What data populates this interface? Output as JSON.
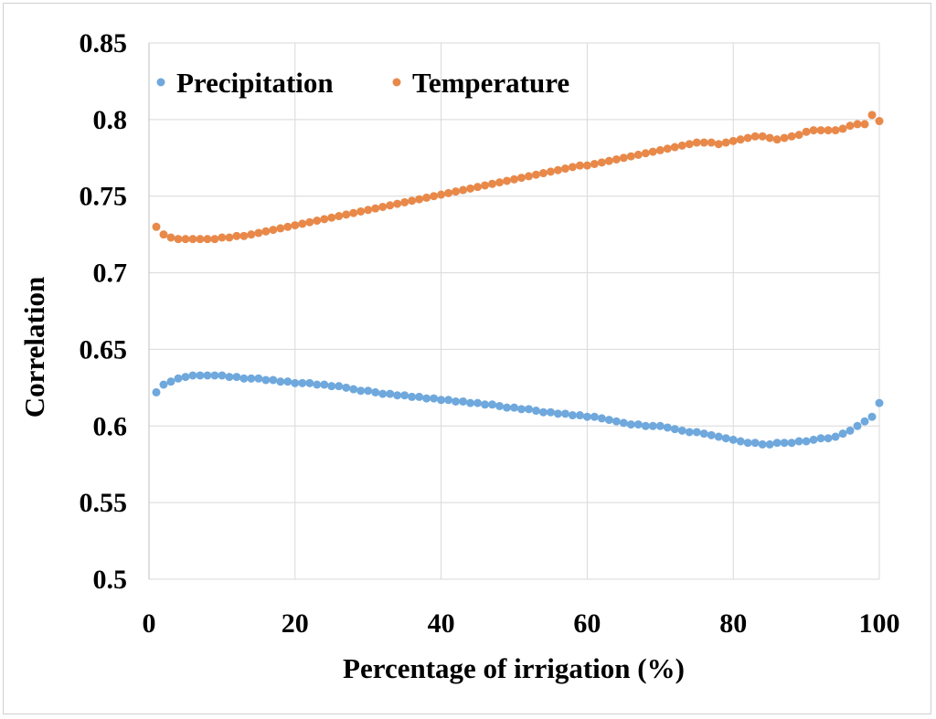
{
  "chart_data": {
    "type": "scatter",
    "title": "",
    "xlabel": "Percentage of irrigation (%)",
    "ylabel": "Correlation",
    "xlim": [
      0,
      100
    ],
    "ylim": [
      0.5,
      0.85
    ],
    "xticks": [
      0,
      20,
      40,
      60,
      80,
      100
    ],
    "xtick_labels": [
      "0",
      "20",
      "40",
      "60",
      "80",
      "100"
    ],
    "yticks": [
      0.5,
      0.55,
      0.6,
      0.65,
      0.7,
      0.75,
      0.8,
      0.85
    ],
    "ytick_labels": [
      "0.5",
      "0.55",
      "0.6",
      "0.65",
      "0.7",
      "0.75",
      "0.8",
      "0.85"
    ],
    "grid": true,
    "legend_position": "top-left",
    "x": [
      1,
      2,
      3,
      4,
      5,
      6,
      7,
      8,
      9,
      10,
      11,
      12,
      13,
      14,
      15,
      16,
      17,
      18,
      19,
      20,
      21,
      22,
      23,
      24,
      25,
      26,
      27,
      28,
      29,
      30,
      31,
      32,
      33,
      34,
      35,
      36,
      37,
      38,
      39,
      40,
      41,
      42,
      43,
      44,
      45,
      46,
      47,
      48,
      49,
      50,
      51,
      52,
      53,
      54,
      55,
      56,
      57,
      58,
      59,
      60,
      61,
      62,
      63,
      64,
      65,
      66,
      67,
      68,
      69,
      70,
      71,
      72,
      73,
      74,
      75,
      76,
      77,
      78,
      79,
      80,
      81,
      82,
      83,
      84,
      85,
      86,
      87,
      88,
      89,
      90,
      91,
      92,
      93,
      94,
      95,
      96,
      97,
      98,
      99,
      100
    ],
    "series": [
      {
        "name": "Precipitation",
        "color": "#6fa8dc",
        "values": [
          0.622,
          0.627,
          0.629,
          0.631,
          0.632,
          0.633,
          0.633,
          0.633,
          0.633,
          0.633,
          0.632,
          0.632,
          0.631,
          0.631,
          0.631,
          0.63,
          0.63,
          0.629,
          0.629,
          0.628,
          0.628,
          0.628,
          0.627,
          0.627,
          0.626,
          0.626,
          0.625,
          0.624,
          0.623,
          0.623,
          0.622,
          0.621,
          0.621,
          0.62,
          0.62,
          0.619,
          0.619,
          0.618,
          0.618,
          0.617,
          0.617,
          0.616,
          0.616,
          0.615,
          0.615,
          0.614,
          0.614,
          0.613,
          0.612,
          0.612,
          0.611,
          0.611,
          0.61,
          0.609,
          0.609,
          0.608,
          0.608,
          0.607,
          0.607,
          0.606,
          0.606,
          0.605,
          0.604,
          0.603,
          0.602,
          0.601,
          0.601,
          0.6,
          0.6,
          0.6,
          0.599,
          0.598,
          0.597,
          0.596,
          0.596,
          0.595,
          0.594,
          0.593,
          0.592,
          0.591,
          0.59,
          0.589,
          0.589,
          0.588,
          0.588,
          0.589,
          0.589,
          0.589,
          0.59,
          0.59,
          0.591,
          0.592,
          0.592,
          0.593,
          0.595,
          0.597,
          0.6,
          0.603,
          0.606,
          0.615
        ]
      },
      {
        "name": "Temperature",
        "color": "#e8894a",
        "values": [
          0.73,
          0.725,
          0.723,
          0.722,
          0.722,
          0.722,
          0.722,
          0.722,
          0.722,
          0.723,
          0.723,
          0.724,
          0.724,
          0.725,
          0.726,
          0.727,
          0.728,
          0.729,
          0.73,
          0.731,
          0.732,
          0.733,
          0.734,
          0.735,
          0.736,
          0.737,
          0.738,
          0.739,
          0.74,
          0.741,
          0.742,
          0.743,
          0.744,
          0.745,
          0.746,
          0.747,
          0.748,
          0.749,
          0.75,
          0.751,
          0.752,
          0.753,
          0.754,
          0.755,
          0.756,
          0.757,
          0.758,
          0.759,
          0.76,
          0.761,
          0.762,
          0.763,
          0.764,
          0.765,
          0.766,
          0.767,
          0.768,
          0.769,
          0.77,
          0.77,
          0.771,
          0.772,
          0.773,
          0.774,
          0.775,
          0.776,
          0.777,
          0.778,
          0.779,
          0.78,
          0.781,
          0.782,
          0.783,
          0.784,
          0.785,
          0.785,
          0.785,
          0.784,
          0.785,
          0.786,
          0.787,
          0.788,
          0.789,
          0.789,
          0.788,
          0.787,
          0.788,
          0.789,
          0.79,
          0.792,
          0.793,
          0.793,
          0.793,
          0.793,
          0.794,
          0.796,
          0.797,
          0.797,
          0.803,
          0.799
        ]
      }
    ]
  }
}
